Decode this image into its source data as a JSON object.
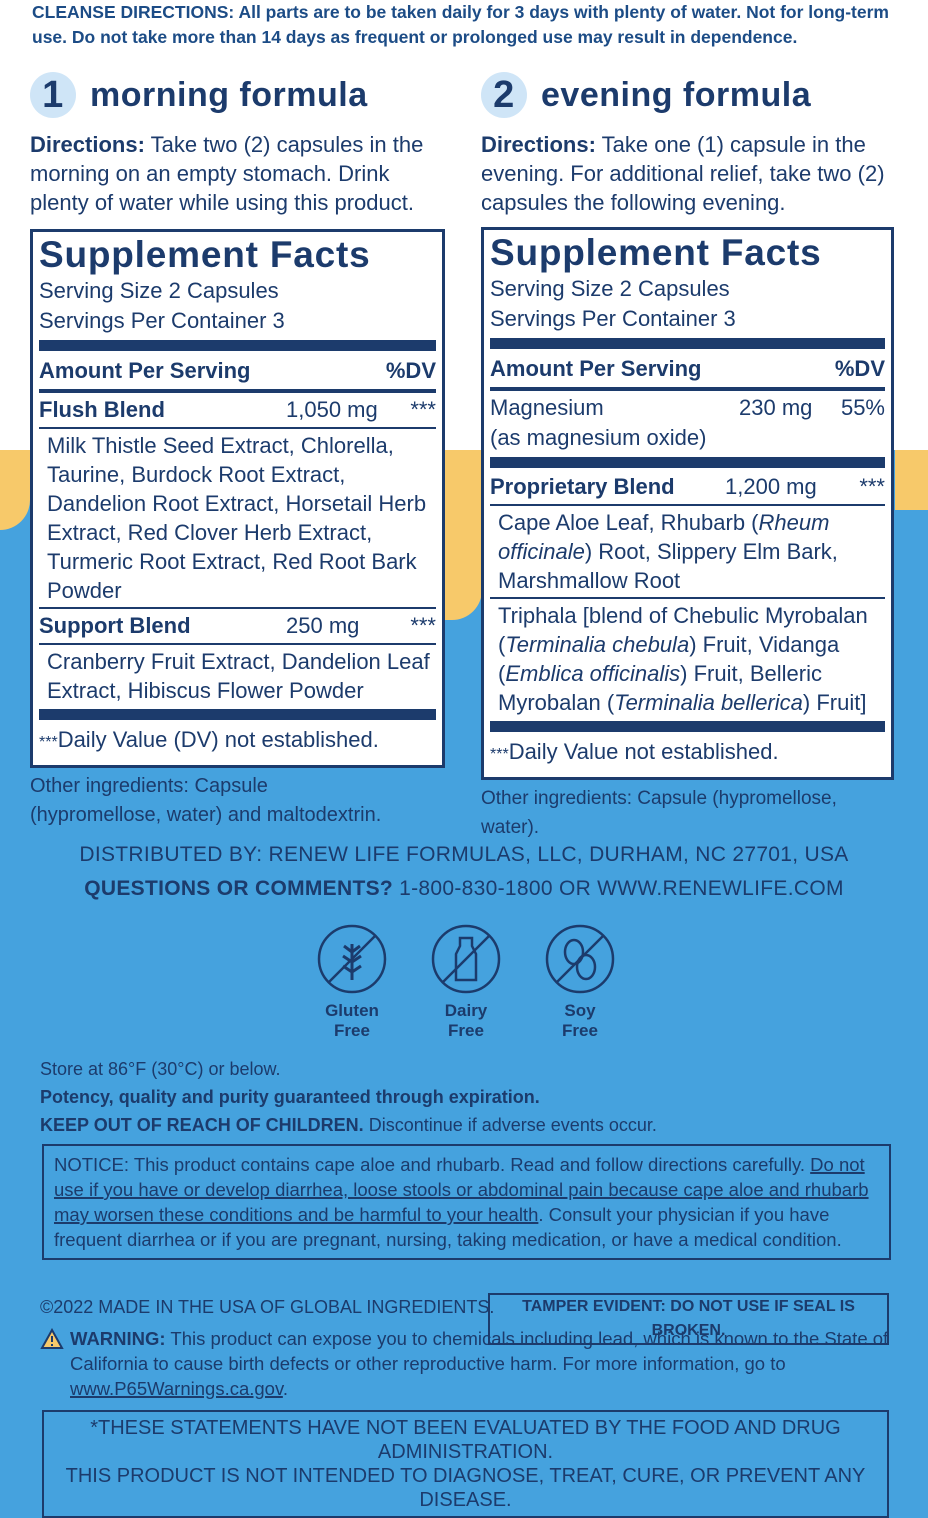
{
  "cleanse_directions": {
    "label": "CLEANSE DIRECTIONS:",
    "text": "All parts are to be taken daily for 3 days with plenty of water. Not for long-term use. Do not take more than 14 days as frequent or prolonged use may result in dependence."
  },
  "formulas": [
    {
      "number": "1",
      "title": "morning formula",
      "directions_label": "Directions:",
      "directions": "Take two (2) capsules in the morning on an empty stomach. Drink plenty of water while using this product.",
      "facts": {
        "title": "Supplement Facts",
        "serving_size": "Serving Size 2 Capsules",
        "servings_per_container": "Servings Per Container 3",
        "amount_header": "Amount Per Serving",
        "dv_header": "%DV",
        "rows": [
          {
            "name": "Flush Blend",
            "amount": "1,050 mg",
            "dv": "***",
            "ingredients": [
              [
                "Milk Thistle Seed Extract, Chlorella, Taurine, Burdock Root Extract, Dandelion Root Extract, Horsetail Herb Extract, Red Clover Herb Extract, Turmeric Root Extract, Red Root Bark Powder"
              ]
            ]
          },
          {
            "name": "Support Blend",
            "amount": "250 mg",
            "dv": "***",
            "ingredients": [
              [
                "Cranberry Fruit Extract, Dandelion Leaf Extract, Hibiscus Flower Powder"
              ]
            ]
          }
        ],
        "footnote_mark": "***",
        "footnote": "Daily Value (DV) not established."
      },
      "other_ingredients": "Other ingredients: Capsule (hypromellose, water) and maltodextrin."
    },
    {
      "number": "2",
      "title": "evening formula",
      "directions_label": "Directions:",
      "directions": "Take one (1) capsule in the evening. For additional relief, take two (2) capsules the following evening.",
      "facts": {
        "title": "Supplement Facts",
        "serving_size": "Serving Size 2 Capsules",
        "servings_per_container": "Servings Per Container 3",
        "amount_header": "Amount Per Serving",
        "dv_header": "%DV",
        "rows": [
          {
            "name": "Magnesium",
            "amount": "230 mg",
            "dv": "55%",
            "sub": "(as magnesium oxide)"
          },
          {
            "name": "Proprietary Blend",
            "amount": "1,200 mg",
            "dv": "***",
            "ingredients": [
              [
                "Cape Aloe Leaf, Rhubarb (",
                "Rheum officinale",
                ") Root, Slippery Elm Bark, Marshmallow Root"
              ],
              [
                "Triphala [blend of Chebulic Myrobalan (",
                "Terminalia chebula",
                ") Fruit, Vidanga (",
                "Emblica officinalis",
                ") Fruit, Belleric Myrobalan (",
                "Terminalia bellerica",
                ") Fruit]"
              ]
            ]
          }
        ],
        "footnote_mark": "***",
        "footnote": "Daily Value not established."
      },
      "other_ingredients": "Other ingredients: Capsule (hypromellose, water)."
    }
  ],
  "contact": {
    "distributed": "DISTRIBUTED BY: RENEW LIFE FORMULAS, LLC, DURHAM, NC 27701, USA",
    "questions_label": "QUESTIONS OR COMMENTS?",
    "questions": "1-800-830-1800 OR WWW.RENEWLIFE.COM"
  },
  "icons": [
    [
      "Gluten",
      "Free"
    ],
    [
      "Dairy",
      "Free"
    ],
    [
      "Soy",
      "Free"
    ]
  ],
  "storage": [
    "Store at 86°F (30°C) or below.",
    "Potency, quality and purity guaranteed through expiration.",
    "KEEP OUT OF REACH OF CHILDREN.",
    "Discontinue if adverse events occur."
  ],
  "notice": {
    "text": "NOTICE: This product contains cape aloe and rhubarb. Read and follow directions carefully.",
    "underlined": "Do not use if you have or develop diarrhea, loose stools or abdominal pain because cape aloe and rhubarb may worsen these conditions and be harmful to your health",
    "rest": ". Consult your physician if you have frequent diarrhea or if you are pregnant, nursing, taking medication, or have a medical condition."
  },
  "copyright": "©2022 MADE IN THE USA OF GLOBAL INGREDIENTS.",
  "tamper": "TAMPER EVIDENT: DO NOT USE IF SEAL IS BROKEN.",
  "warning": {
    "label": "WARNING:",
    "text": "This product can expose you to chemicals including lead, which is known to the State of California to cause birth defects or other reproductive harm. For more information, go to",
    "link": "www.P65Warnings.ca.gov",
    "end": "."
  },
  "disclaimer": [
    "*THESE STATEMENTS HAVE NOT BEEN EVALUATED BY THE FOOD AND DRUG ADMINISTRATION.",
    "THIS PRODUCT IS NOT INTENDED TO DIAGNOSE, TREAT, CURE, OR PREVENT ANY DISEASE."
  ]
}
